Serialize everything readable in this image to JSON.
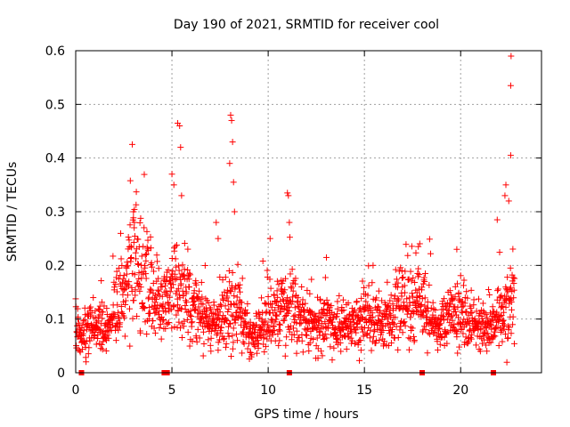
{
  "chart_data": {
    "type": "scatter",
    "title": "Day 190 of 2021, SRMTID for receiver cool",
    "xlabel": "GPS time / hours",
    "ylabel": "SRMTID / TECUs",
    "xlim": [
      0,
      24.2
    ],
    "ylim": [
      0,
      0.6
    ],
    "x_ticks": [
      0,
      5,
      10,
      15,
      20
    ],
    "x_tick_labels": [
      "0",
      "5",
      "10",
      "15",
      "20"
    ],
    "y_ticks": [
      0,
      0.1,
      0.2,
      0.3,
      0.4,
      0.5,
      0.6
    ],
    "y_tick_labels": [
      "0",
      "0.1",
      "0.2",
      "0.3",
      "0.4",
      "0.5",
      "0.6"
    ],
    "grid": true,
    "series_color": "#ff0000",
    "marker": "plus",
    "seed": 190,
    "trend": [
      {
        "x": 0.0,
        "y": 0.07
      },
      {
        "x": 0.5,
        "y": 0.085
      },
      {
        "x": 1.0,
        "y": 0.08
      },
      {
        "x": 1.5,
        "y": 0.075
      },
      {
        "x": 2.0,
        "y": 0.11
      },
      {
        "x": 2.5,
        "y": 0.16
      },
      {
        "x": 3.0,
        "y": 0.2
      },
      {
        "x": 3.5,
        "y": 0.19
      },
      {
        "x": 4.0,
        "y": 0.15
      },
      {
        "x": 4.5,
        "y": 0.13
      },
      {
        "x": 5.0,
        "y": 0.16
      },
      {
        "x": 5.5,
        "y": 0.16
      },
      {
        "x": 6.0,
        "y": 0.13
      },
      {
        "x": 6.5,
        "y": 0.1
      },
      {
        "x": 7.0,
        "y": 0.09
      },
      {
        "x": 7.5,
        "y": 0.1
      },
      {
        "x": 8.0,
        "y": 0.12
      },
      {
        "x": 8.5,
        "y": 0.11
      },
      {
        "x": 9.0,
        "y": 0.07
      },
      {
        "x": 9.5,
        "y": 0.065
      },
      {
        "x": 10.0,
        "y": 0.1
      },
      {
        "x": 10.5,
        "y": 0.13
      },
      {
        "x": 11.0,
        "y": 0.12
      },
      {
        "x": 11.5,
        "y": 0.11
      },
      {
        "x": 12.0,
        "y": 0.1
      },
      {
        "x": 12.5,
        "y": 0.08
      },
      {
        "x": 13.0,
        "y": 0.09
      },
      {
        "x": 13.5,
        "y": 0.08
      },
      {
        "x": 14.0,
        "y": 0.09
      },
      {
        "x": 14.5,
        "y": 0.09
      },
      {
        "x": 15.0,
        "y": 0.1
      },
      {
        "x": 15.5,
        "y": 0.1
      },
      {
        "x": 16.0,
        "y": 0.09
      },
      {
        "x": 16.5,
        "y": 0.1
      },
      {
        "x": 17.0,
        "y": 0.12
      },
      {
        "x": 17.5,
        "y": 0.14
      },
      {
        "x": 18.0,
        "y": 0.13
      },
      {
        "x": 18.5,
        "y": 0.09
      },
      {
        "x": 19.0,
        "y": 0.08
      },
      {
        "x": 19.5,
        "y": 0.12
      },
      {
        "x": 20.0,
        "y": 0.11
      },
      {
        "x": 20.5,
        "y": 0.09
      },
      {
        "x": 21.0,
        "y": 0.08
      },
      {
        "x": 21.5,
        "y": 0.08
      },
      {
        "x": 22.0,
        "y": 0.11
      },
      {
        "x": 22.5,
        "y": 0.13
      },
      {
        "x": 22.8,
        "y": 0.12
      }
    ],
    "spikes": [
      {
        "x": 3.0,
        "y": 0.3
      },
      {
        "x": 3.05,
        "y": 0.28
      },
      {
        "x": 5.3,
        "y": 0.465
      },
      {
        "x": 5.4,
        "y": 0.46
      },
      {
        "x": 5.45,
        "y": 0.42
      },
      {
        "x": 5.0,
        "y": 0.37
      },
      {
        "x": 5.1,
        "y": 0.35
      },
      {
        "x": 5.5,
        "y": 0.33
      },
      {
        "x": 7.3,
        "y": 0.28
      },
      {
        "x": 7.4,
        "y": 0.25
      },
      {
        "x": 8.05,
        "y": 0.48
      },
      {
        "x": 8.1,
        "y": 0.47
      },
      {
        "x": 8.15,
        "y": 0.43
      },
      {
        "x": 8.2,
        "y": 0.355
      },
      {
        "x": 8.0,
        "y": 0.39
      },
      {
        "x": 8.25,
        "y": 0.3
      },
      {
        "x": 10.1,
        "y": 0.25
      },
      {
        "x": 11.0,
        "y": 0.335
      },
      {
        "x": 11.05,
        "y": 0.33
      },
      {
        "x": 11.1,
        "y": 0.28
      },
      {
        "x": 17.8,
        "y": 0.235
      },
      {
        "x": 19.8,
        "y": 0.23
      },
      {
        "x": 21.9,
        "y": 0.285
      },
      {
        "x": 22.3,
        "y": 0.33
      },
      {
        "x": 22.35,
        "y": 0.35
      },
      {
        "x": 22.5,
        "y": 0.32
      },
      {
        "x": 22.6,
        "y": 0.405
      },
      {
        "x": 22.6,
        "y": 0.535
      },
      {
        "x": 22.62,
        "y": 0.59
      }
    ],
    "zero_markers_x": [
      0.3,
      4.6,
      4.75,
      11.1,
      18.0,
      21.7
    ]
  }
}
